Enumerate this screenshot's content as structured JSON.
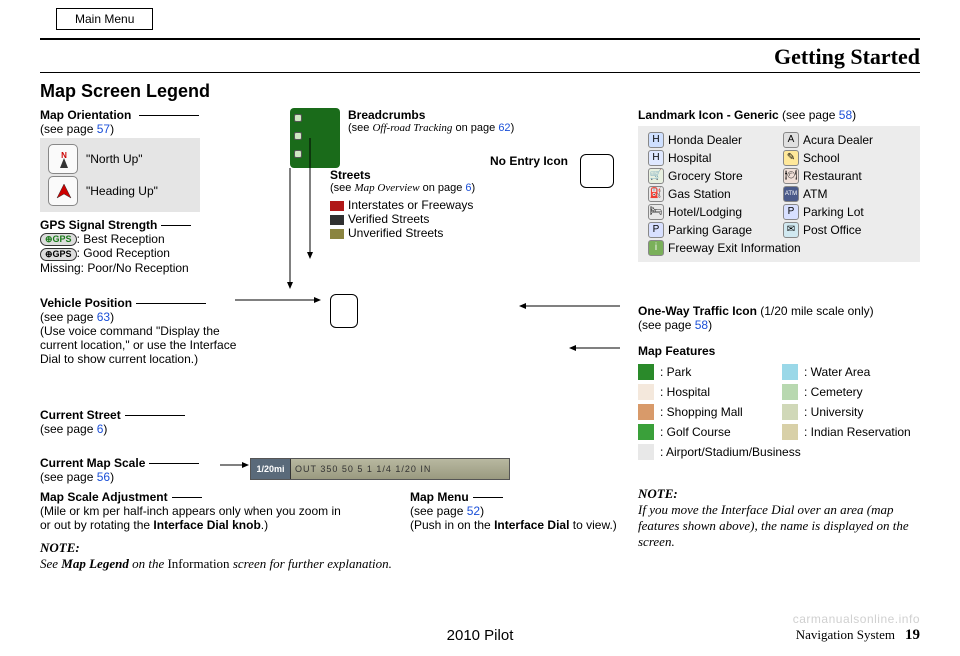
{
  "mainMenu": "Main Menu",
  "headerTitle": "Getting Started",
  "sectionTitle": "Map Screen Legend",
  "mapOrientation": {
    "title": "Map Orientation",
    "pageRef": "(see page ",
    "pageNum": "57",
    "pageRefClose": ")",
    "northUp": "\"North Up\"",
    "headingUp": "\"Heading Up\""
  },
  "gps": {
    "title": "GPS Signal Strength",
    "best": ": Best Reception",
    "good": ": Good Reception",
    "missing": "Missing: Poor/No Reception"
  },
  "vehiclePos": {
    "title": "Vehicle Position",
    "pageRef": "(see page ",
    "pageNum": "63",
    "pageRefClose": ")",
    "desc": "(Use voice command \"Display the current location,\" or use the Interface Dial to show current location.)"
  },
  "currentStreet": {
    "title": "Current Street",
    "pageRef": "(see page ",
    "pageNum": "6",
    "pageRefClose": ")"
  },
  "currentScale": {
    "title": "Current Map Scale",
    "pageRef": "(see page ",
    "pageNum": "56",
    "pageRefClose": ")"
  },
  "scaleAdj": {
    "title": "Map Scale Adjustment",
    "desc1": "(Mile or km per half-inch appears only when you zoom in or out by rotating the ",
    "desc2": "Interface Dial knob",
    "desc3": ".)"
  },
  "breadcrumbs": {
    "title": "Breadcrumbs",
    "desc1": "(see ",
    "desc2": "Off-road Tracking",
    "desc3": " on page ",
    "pageNum": "62",
    "desc4": ")"
  },
  "noEntry": "No Entry Icon",
  "streets": {
    "title": "Streets",
    "desc1": "(see ",
    "desc2": "Map Overview",
    "desc3": " on page ",
    "pageNum": "6",
    "desc4": ")",
    "items": [
      {
        "color": "#b01818",
        "label": "Interstates or Freeways"
      },
      {
        "color": "#303030",
        "label": "Verified Streets"
      },
      {
        "color": "#8a8440",
        "label": "Unverified Streets"
      }
    ]
  },
  "mapMenu": {
    "title": "Map Menu",
    "pageRef": "(see page ",
    "pageNum": "52",
    "pageRefClose": ")",
    "desc1": "(Push in on the ",
    "desc2": "Interface Dial",
    "desc3": " to view.)"
  },
  "landmark": {
    "title": "Landmark Icon - Generic",
    "pageRef": " (see page ",
    "pageNum": "58",
    "pageRefClose": ")",
    "items": [
      {
        "icon": "H",
        "bg": "#cfe0ff",
        "label": "Honda Dealer"
      },
      {
        "icon": "A",
        "bg": "#e0e0e0",
        "label": "Acura Dealer"
      },
      {
        "icon": "H",
        "bg": "#dfe8ff",
        "label": "Hospital"
      },
      {
        "icon": "✎",
        "bg": "#ffe89a",
        "label": "School"
      },
      {
        "icon": "🛒",
        "bg": "#e8f0e0",
        "label": "Grocery Store"
      },
      {
        "icon": "🍽",
        "bg": "#f0e0d8",
        "label": "Restaurant"
      },
      {
        "icon": "⛽",
        "bg": "#e8e8e8",
        "label": "Gas Station"
      },
      {
        "icon": "ATM",
        "bg": "#4a5a8a",
        "fg": "#fff",
        "label": "ATM"
      },
      {
        "icon": "🛏",
        "bg": "#e8e8e8",
        "label": "Hotel/Lodging"
      },
      {
        "icon": "P",
        "bg": "#d8e0ff",
        "label": "Parking Lot"
      },
      {
        "icon": "P",
        "bg": "#d8e0ff",
        "label": "Parking Garage"
      },
      {
        "icon": "✉",
        "bg": "#d0e8f0",
        "label": "Post Office"
      },
      {
        "icon": "i",
        "bg": "#7ab05a",
        "fg": "#fff",
        "label": "Freeway Exit Information",
        "full": true
      }
    ]
  },
  "oneWay": {
    "title": "One-Way Traffic Icon",
    "suffix": " (1/20 mile scale only)",
    "pageRef": "(see page ",
    "pageNum": "58",
    "pageRefClose": ")"
  },
  "mapFeatures": {
    "title": "Map Features",
    "items": [
      {
        "color": "#2a8a2a",
        "label": ": Park"
      },
      {
        "color": "#9ad8e8",
        "label": ": Water Area"
      },
      {
        "color": "#f4e8dc",
        "label": ": Hospital"
      },
      {
        "color": "#b8d8b0",
        "label": ": Cemetery"
      },
      {
        "color": "#d89a6a",
        "label": ": Shopping Mall"
      },
      {
        "color": "#d0d8b8",
        "label": ": University"
      },
      {
        "color": "#3aa03a",
        "label": ": Golf Course"
      },
      {
        "color": "#d8d0a8",
        "label": ": Indian Reservation"
      },
      {
        "color": "#e8e8e8",
        "label": ": Airport/Stadium/Business",
        "full": true
      }
    ]
  },
  "noteRight": {
    "label": "NOTE:",
    "text": "If you move the Interface Dial over an area (map features shown above), the name is displayed on the screen."
  },
  "noteBottom": {
    "label": "NOTE:",
    "text1": "See ",
    "text2": "Map Legend",
    "text3": " on the ",
    "text4": "Information",
    "text5": " screen for further explanation."
  },
  "scaleBar": {
    "cap": "1/20mi",
    "ticks": "OUT 350  50   5   1   1/4  1/20  IN"
  },
  "footer": {
    "model": "2010 Pilot",
    "nav": "Navigation System",
    "page": "19"
  },
  "watermark": "carmanualsonline.info"
}
